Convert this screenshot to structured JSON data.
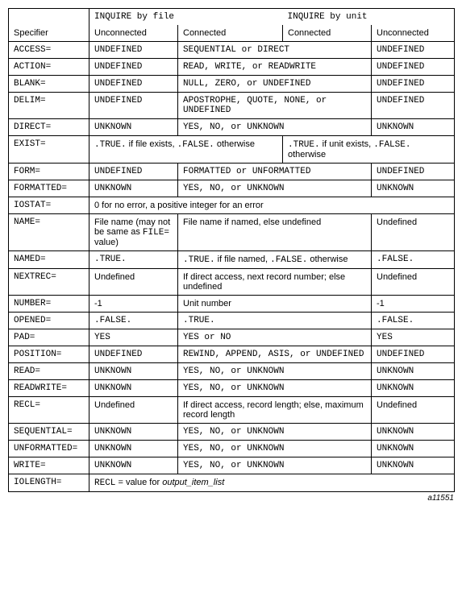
{
  "header": {
    "blank": "",
    "by_file": "INQUIRE by file",
    "by_unit": "INQUIRE by unit",
    "specifier": "Specifier",
    "unconnected1": "Unconnected",
    "connected1": "Connected",
    "connected2": "Connected",
    "unconnected2": "Unconnected"
  },
  "rows": {
    "access": {
      "spec": "ACCESS=",
      "c1": "UNDEFINED",
      "mid": "SEQUENTIAL or DIRECT",
      "c4": "UNDEFINED"
    },
    "action": {
      "spec": "ACTION=",
      "c1": "UNDEFINED",
      "mid": "READ, WRITE, or READWRITE",
      "c4": "UNDEFINED"
    },
    "blank": {
      "spec": "BLANK=",
      "c1": "UNDEFINED",
      "mid": "NULL, ZERO, or UNDEFINED",
      "c4": "UNDEFINED"
    },
    "delim": {
      "spec": "DELIM=",
      "c1": "UNDEFINED",
      "mid": "APOSTROPHE, QUOTE, NONE, or UNDEFINED",
      "c4": "UNDEFINED"
    },
    "direct": {
      "spec": "DIRECT=",
      "c1": "UNKNOWN",
      "mid": "YES, NO, or UNKNOWN",
      "c4": "UNKNOWN"
    },
    "exist": {
      "spec": "EXIST=",
      "left_mono": ".TRUE.",
      "left_rest": " if file exists, ",
      "left_mono2": ".FALSE.",
      "left_rest2": " otherwise",
      "right_mono": ".TRUE.",
      "right_rest": " if unit exists, ",
      "right_mono2": ".FALSE.",
      "right_rest2": " otherwise"
    },
    "form": {
      "spec": "FORM=",
      "c1": "UNDEFINED",
      "mid": "FORMATTED or UNFORMATTED",
      "c4": "UNDEFINED"
    },
    "formatted": {
      "spec": "FORMATTED=",
      "c1": "UNKNOWN",
      "mid": "YES, NO, or UNKNOWN",
      "c4": "UNKNOWN"
    },
    "iostat": {
      "spec": "IOSTAT=",
      "full": "0 for no error, a positive integer for an error"
    },
    "name": {
      "spec": "NAME=",
      "c1a": "File name (may not be same as ",
      "c1mono": "FILE=",
      "c1b": " value)",
      "mid": "File name if named, else undefined",
      "c4": "Undefined"
    },
    "named": {
      "spec": "NAMED=",
      "c1": ".TRUE.",
      "mid_mono1": ".TRUE.",
      "mid_rest1": " if file named, ",
      "mid_mono2": ".FALSE.",
      "mid_rest2": " otherwise",
      "c4": ".FALSE."
    },
    "nextrec": {
      "spec": "NEXTREC=",
      "c1": "Undefined",
      "mid": "If direct access, next record number; else undefined",
      "c4": "Undefined"
    },
    "number": {
      "spec": "NUMBER=",
      "c1": "-1",
      "mid": "Unit number",
      "c4": "-1"
    },
    "opened": {
      "spec": "OPENED=",
      "c1": ".FALSE.",
      "mid": ".TRUE.",
      "c4": ".FALSE."
    },
    "pad": {
      "spec": "PAD=",
      "c1": "YES",
      "mid": "YES or NO",
      "c4": "YES"
    },
    "position": {
      "spec": "POSITION=",
      "c1": "UNDEFINED",
      "mid": "REWIND, APPEND, ASIS, or UNDEFINED",
      "c4": "UNDEFINED"
    },
    "read": {
      "spec": "READ=",
      "c1": "UNKNOWN",
      "mid": "YES, NO, or UNKNOWN",
      "c4": "UNKNOWN"
    },
    "readwrite": {
      "spec": "READWRITE=",
      "c1": "UNKNOWN",
      "mid": "YES, NO, or UNKNOWN",
      "c4": "UNKNOWN"
    },
    "recl": {
      "spec": "RECL=",
      "c1": "Undefined",
      "mid": "If direct access, record length; else, maximum record length",
      "c4": "Undefined"
    },
    "sequential": {
      "spec": "SEQUENTIAL=",
      "c1": "UNKNOWN",
      "mid": "YES, NO, or UNKNOWN",
      "c4": "UNKNOWN"
    },
    "unformatted": {
      "spec": "UNFORMATTED=",
      "c1": "UNKNOWN",
      "mid": "YES, NO, or UNKNOWN",
      "c4": "UNKNOWN"
    },
    "write": {
      "spec": "WRITE=",
      "c1": "UNKNOWN",
      "mid": "YES, NO, or UNKNOWN",
      "c4": "UNKNOWN"
    },
    "iolength": {
      "spec": "IOLENGTH=",
      "full_mono": "RECL",
      "full_rest": " = value for ",
      "full_ital": "output_item_list"
    }
  },
  "figure_id": "a11551"
}
